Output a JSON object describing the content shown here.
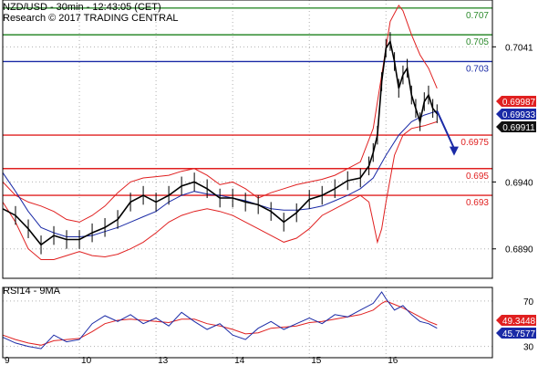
{
  "chart_data": {
    "type": "line",
    "symbol": "NZD/USD",
    "timeframe": "30min",
    "time_label": "12:43:05 (CET)",
    "research_label": "Research © 2017 TRADING CENTRAL",
    "indicator_label": "RSI14 - 9MA",
    "price_ylim": [
      0.6868,
      0.7076
    ],
    "rsi_ylim": [
      20,
      82
    ],
    "price_ticks": [
      {
        "value": 0.7041,
        "label": "0.7041"
      },
      {
        "value": 0.694,
        "label": "0.6940"
      },
      {
        "value": 0.689,
        "label": "0.6890"
      }
    ],
    "rsi_ticks": [
      {
        "value": 70,
        "label": "70"
      },
      {
        "value": 30,
        "label": "30"
      }
    ],
    "x_ticks": [
      {
        "x": 0,
        "label": "9"
      },
      {
        "x": 18,
        "label": "10"
      },
      {
        "x": 36,
        "label": "13"
      },
      {
        "x": 54,
        "label": "14"
      },
      {
        "x": 72,
        "label": "15"
      },
      {
        "x": 90,
        "label": "16"
      }
    ],
    "levels": [
      {
        "value": 0.707,
        "label": "0.707",
        "color": "#2e8b2e"
      },
      {
        "value": 0.705,
        "label": "0.705",
        "color": "#2e8b2e"
      },
      {
        "value": 0.703,
        "label": "0.703",
        "color": "#1a2aa6"
      },
      {
        "value": 0.6975,
        "label": "0.6975",
        "color": "#e02020"
      },
      {
        "value": 0.695,
        "label": "0.695",
        "color": "#e02020"
      },
      {
        "value": 0.693,
        "label": "0.693",
        "color": "#e02020"
      }
    ],
    "price_tags": [
      {
        "value": 0.69987,
        "label": "0.69987",
        "bg": "#e02020"
      },
      {
        "value": 0.69933,
        "label": "0.69933",
        "bg": "#1a2aa6"
      },
      {
        "value": 0.69911,
        "label": "0.69911",
        "bg": "#111111"
      }
    ],
    "rsi_tags": [
      {
        "value": 49.3448,
        "label": "49.3448",
        "bg": "#e02020"
      },
      {
        "value": 45.7577,
        "label": "45.7577",
        "bg": "#1a2aa6"
      }
    ],
    "arrow": {
      "from": {
        "x": 102,
        "y": 0.6993
      },
      "to": {
        "x": 106,
        "y": 0.6961
      },
      "color": "#1a2aa6"
    },
    "close_series": [
      {
        "x": 0,
        "y": 0.692
      },
      {
        "x": 3,
        "y": 0.6915
      },
      {
        "x": 6,
        "y": 0.6905
      },
      {
        "x": 9,
        "y": 0.6893
      },
      {
        "x": 12,
        "y": 0.69
      },
      {
        "x": 15,
        "y": 0.6897
      },
      {
        "x": 18,
        "y": 0.6897
      },
      {
        "x": 21,
        "y": 0.6902
      },
      {
        "x": 24,
        "y": 0.6906
      },
      {
        "x": 27,
        "y": 0.6912
      },
      {
        "x": 30,
        "y": 0.6925
      },
      {
        "x": 33,
        "y": 0.693
      },
      {
        "x": 36,
        "y": 0.6925
      },
      {
        "x": 39,
        "y": 0.693
      },
      {
        "x": 42,
        "y": 0.6937
      },
      {
        "x": 45,
        "y": 0.694
      },
      {
        "x": 48,
        "y": 0.6935
      },
      {
        "x": 51,
        "y": 0.6928
      },
      {
        "x": 54,
        "y": 0.6928
      },
      {
        "x": 57,
        "y": 0.6925
      },
      {
        "x": 60,
        "y": 0.6923
      },
      {
        "x": 63,
        "y": 0.6918
      },
      {
        "x": 66,
        "y": 0.691
      },
      {
        "x": 69,
        "y": 0.6917
      },
      {
        "x": 72,
        "y": 0.6927
      },
      {
        "x": 75,
        "y": 0.693
      },
      {
        "x": 78,
        "y": 0.6935
      },
      {
        "x": 81,
        "y": 0.6941
      },
      {
        "x": 84,
        "y": 0.6943
      },
      {
        "x": 86,
        "y": 0.6952
      },
      {
        "x": 87,
        "y": 0.6962
      },
      {
        "x": 88,
        "y": 0.6975
      },
      {
        "x": 89,
        "y": 0.7015
      },
      {
        "x": 90,
        "y": 0.704
      },
      {
        "x": 91,
        "y": 0.7045
      },
      {
        "x": 92,
        "y": 0.703
      },
      {
        "x": 93,
        "y": 0.701
      },
      {
        "x": 94,
        "y": 0.702
      },
      {
        "x": 95,
        "y": 0.7025
      },
      {
        "x": 96,
        "y": 0.7005
      },
      {
        "x": 97,
        "y": 0.6995
      },
      {
        "x": 98,
        "y": 0.6985
      },
      {
        "x": 99,
        "y": 0.7
      },
      {
        "x": 100,
        "y": 0.7005
      },
      {
        "x": 101,
        "y": 0.6995
      },
      {
        "x": 102,
        "y": 0.6991
      }
    ],
    "ma_series": [
      {
        "x": 0,
        "y": 0.6947
      },
      {
        "x": 3,
        "y": 0.6933
      },
      {
        "x": 6,
        "y": 0.6918
      },
      {
        "x": 9,
        "y": 0.6906
      },
      {
        "x": 12,
        "y": 0.6902
      },
      {
        "x": 15,
        "y": 0.6899
      },
      {
        "x": 18,
        "y": 0.6899
      },
      {
        "x": 21,
        "y": 0.69
      },
      {
        "x": 24,
        "y": 0.6903
      },
      {
        "x": 27,
        "y": 0.6906
      },
      {
        "x": 30,
        "y": 0.691
      },
      {
        "x": 33,
        "y": 0.6914
      },
      {
        "x": 36,
        "y": 0.6918
      },
      {
        "x": 39,
        "y": 0.6925
      },
      {
        "x": 42,
        "y": 0.693
      },
      {
        "x": 45,
        "y": 0.6933
      },
      {
        "x": 48,
        "y": 0.6931
      },
      {
        "x": 51,
        "y": 0.693
      },
      {
        "x": 54,
        "y": 0.6928
      },
      {
        "x": 57,
        "y": 0.6926
      },
      {
        "x": 60,
        "y": 0.6923
      },
      {
        "x": 63,
        "y": 0.692
      },
      {
        "x": 66,
        "y": 0.6919
      },
      {
        "x": 69,
        "y": 0.6919
      },
      {
        "x": 72,
        "y": 0.692
      },
      {
        "x": 75,
        "y": 0.6922
      },
      {
        "x": 78,
        "y": 0.6926
      },
      {
        "x": 81,
        "y": 0.693
      },
      {
        "x": 84,
        "y": 0.6935
      },
      {
        "x": 87,
        "y": 0.6943
      },
      {
        "x": 90,
        "y": 0.696
      },
      {
        "x": 93,
        "y": 0.6975
      },
      {
        "x": 96,
        "y": 0.6985
      },
      {
        "x": 99,
        "y": 0.699
      },
      {
        "x": 102,
        "y": 0.6993
      }
    ],
    "bb_upper": [
      {
        "x": 0,
        "y": 0.694
      },
      {
        "x": 3,
        "y": 0.693
      },
      {
        "x": 6,
        "y": 0.6925
      },
      {
        "x": 9,
        "y": 0.6922
      },
      {
        "x": 12,
        "y": 0.6918
      },
      {
        "x": 15,
        "y": 0.6912
      },
      {
        "x": 18,
        "y": 0.691
      },
      {
        "x": 21,
        "y": 0.6915
      },
      {
        "x": 24,
        "y": 0.6922
      },
      {
        "x": 27,
        "y": 0.6932
      },
      {
        "x": 30,
        "y": 0.694
      },
      {
        "x": 33,
        "y": 0.6943
      },
      {
        "x": 36,
        "y": 0.6944
      },
      {
        "x": 39,
        "y": 0.6945
      },
      {
        "x": 42,
        "y": 0.6948
      },
      {
        "x": 45,
        "y": 0.695
      },
      {
        "x": 48,
        "y": 0.6945
      },
      {
        "x": 51,
        "y": 0.6938
      },
      {
        "x": 54,
        "y": 0.694
      },
      {
        "x": 57,
        "y": 0.6935
      },
      {
        "x": 60,
        "y": 0.6928
      },
      {
        "x": 63,
        "y": 0.6932
      },
      {
        "x": 66,
        "y": 0.6935
      },
      {
        "x": 69,
        "y": 0.6938
      },
      {
        "x": 72,
        "y": 0.694
      },
      {
        "x": 75,
        "y": 0.6942
      },
      {
        "x": 78,
        "y": 0.6945
      },
      {
        "x": 81,
        "y": 0.695
      },
      {
        "x": 84,
        "y": 0.6955
      },
      {
        "x": 87,
        "y": 0.698
      },
      {
        "x": 89,
        "y": 0.702
      },
      {
        "x": 91,
        "y": 0.706
      },
      {
        "x": 93,
        "y": 0.7072
      },
      {
        "x": 94,
        "y": 0.7068
      },
      {
        "x": 96,
        "y": 0.705
      },
      {
        "x": 98,
        "y": 0.7035
      },
      {
        "x": 100,
        "y": 0.7025
      },
      {
        "x": 102,
        "y": 0.701
      }
    ],
    "bb_lower": [
      {
        "x": 0,
        "y": 0.6925
      },
      {
        "x": 3,
        "y": 0.691
      },
      {
        "x": 6,
        "y": 0.689
      },
      {
        "x": 9,
        "y": 0.6882
      },
      {
        "x": 12,
        "y": 0.6882
      },
      {
        "x": 15,
        "y": 0.6885
      },
      {
        "x": 18,
        "y": 0.6888
      },
      {
        "x": 21,
        "y": 0.6885
      },
      {
        "x": 24,
        "y": 0.6884
      },
      {
        "x": 27,
        "y": 0.6886
      },
      {
        "x": 30,
        "y": 0.689
      },
      {
        "x": 33,
        "y": 0.6895
      },
      {
        "x": 36,
        "y": 0.6902
      },
      {
        "x": 39,
        "y": 0.691
      },
      {
        "x": 42,
        "y": 0.6915
      },
      {
        "x": 45,
        "y": 0.6918
      },
      {
        "x": 48,
        "y": 0.692
      },
      {
        "x": 51,
        "y": 0.6918
      },
      {
        "x": 54,
        "y": 0.6915
      },
      {
        "x": 57,
        "y": 0.691
      },
      {
        "x": 60,
        "y": 0.6905
      },
      {
        "x": 63,
        "y": 0.69
      },
      {
        "x": 66,
        "y": 0.6895
      },
      {
        "x": 69,
        "y": 0.6898
      },
      {
        "x": 72,
        "y": 0.6905
      },
      {
        "x": 75,
        "y": 0.6915
      },
      {
        "x": 78,
        "y": 0.692
      },
      {
        "x": 81,
        "y": 0.6925
      },
      {
        "x": 84,
        "y": 0.693
      },
      {
        "x": 86,
        "y": 0.6925
      },
      {
        "x": 87,
        "y": 0.691
      },
      {
        "x": 88,
        "y": 0.6895
      },
      {
        "x": 89,
        "y": 0.6905
      },
      {
        "x": 90,
        "y": 0.6925
      },
      {
        "x": 92,
        "y": 0.696
      },
      {
        "x": 94,
        "y": 0.6975
      },
      {
        "x": 96,
        "y": 0.698
      },
      {
        "x": 99,
        "y": 0.6982
      },
      {
        "x": 102,
        "y": 0.6985
      }
    ],
    "rsi_series": [
      {
        "x": 0,
        "y": 38
      },
      {
        "x": 3,
        "y": 33
      },
      {
        "x": 6,
        "y": 30
      },
      {
        "x": 9,
        "y": 28
      },
      {
        "x": 12,
        "y": 40
      },
      {
        "x": 15,
        "y": 34
      },
      {
        "x": 18,
        "y": 36
      },
      {
        "x": 21,
        "y": 50
      },
      {
        "x": 24,
        "y": 57
      },
      {
        "x": 27,
        "y": 52
      },
      {
        "x": 30,
        "y": 58
      },
      {
        "x": 33,
        "y": 50
      },
      {
        "x": 36,
        "y": 55
      },
      {
        "x": 39,
        "y": 48
      },
      {
        "x": 42,
        "y": 60
      },
      {
        "x": 45,
        "y": 52
      },
      {
        "x": 48,
        "y": 45
      },
      {
        "x": 51,
        "y": 50
      },
      {
        "x": 54,
        "y": 40
      },
      {
        "x": 57,
        "y": 36
      },
      {
        "x": 60,
        "y": 46
      },
      {
        "x": 63,
        "y": 52
      },
      {
        "x": 66,
        "y": 45
      },
      {
        "x": 69,
        "y": 50
      },
      {
        "x": 72,
        "y": 55
      },
      {
        "x": 75,
        "y": 50
      },
      {
        "x": 78,
        "y": 58
      },
      {
        "x": 81,
        "y": 56
      },
      {
        "x": 84,
        "y": 62
      },
      {
        "x": 87,
        "y": 68
      },
      {
        "x": 89,
        "y": 78
      },
      {
        "x": 90,
        "y": 72
      },
      {
        "x": 92,
        "y": 62
      },
      {
        "x": 94,
        "y": 66
      },
      {
        "x": 96,
        "y": 58
      },
      {
        "x": 98,
        "y": 52
      },
      {
        "x": 100,
        "y": 50
      },
      {
        "x": 102,
        "y": 46
      }
    ],
    "rsi_ma_series": [
      {
        "x": 0,
        "y": 40
      },
      {
        "x": 3,
        "y": 36
      },
      {
        "x": 6,
        "y": 33
      },
      {
        "x": 9,
        "y": 31
      },
      {
        "x": 12,
        "y": 35
      },
      {
        "x": 15,
        "y": 36
      },
      {
        "x": 18,
        "y": 37
      },
      {
        "x": 21,
        "y": 43
      },
      {
        "x": 24,
        "y": 50
      },
      {
        "x": 27,
        "y": 53
      },
      {
        "x": 30,
        "y": 54
      },
      {
        "x": 33,
        "y": 53
      },
      {
        "x": 36,
        "y": 52
      },
      {
        "x": 39,
        "y": 51
      },
      {
        "x": 42,
        "y": 54
      },
      {
        "x": 45,
        "y": 54
      },
      {
        "x": 48,
        "y": 50
      },
      {
        "x": 51,
        "y": 48
      },
      {
        "x": 54,
        "y": 45
      },
      {
        "x": 57,
        "y": 41
      },
      {
        "x": 60,
        "y": 42
      },
      {
        "x": 63,
        "y": 46
      },
      {
        "x": 66,
        "y": 47
      },
      {
        "x": 69,
        "y": 48
      },
      {
        "x": 72,
        "y": 51
      },
      {
        "x": 75,
        "y": 52
      },
      {
        "x": 78,
        "y": 54
      },
      {
        "x": 81,
        "y": 56
      },
      {
        "x": 84,
        "y": 58
      },
      {
        "x": 87,
        "y": 62
      },
      {
        "x": 89,
        "y": 68
      },
      {
        "x": 90,
        "y": 70
      },
      {
        "x": 92,
        "y": 67
      },
      {
        "x": 94,
        "y": 64
      },
      {
        "x": 96,
        "y": 60
      },
      {
        "x": 98,
        "y": 56
      },
      {
        "x": 100,
        "y": 52
      },
      {
        "x": 102,
        "y": 49
      }
    ],
    "colors": {
      "price": "#000000",
      "ma": "#1a2aa6",
      "bollinger": "#e02020",
      "rsi": "#1a2aa6",
      "rsi_ma": "#e02020",
      "grid": "#b0b0b0",
      "axis": "#000000"
    }
  }
}
